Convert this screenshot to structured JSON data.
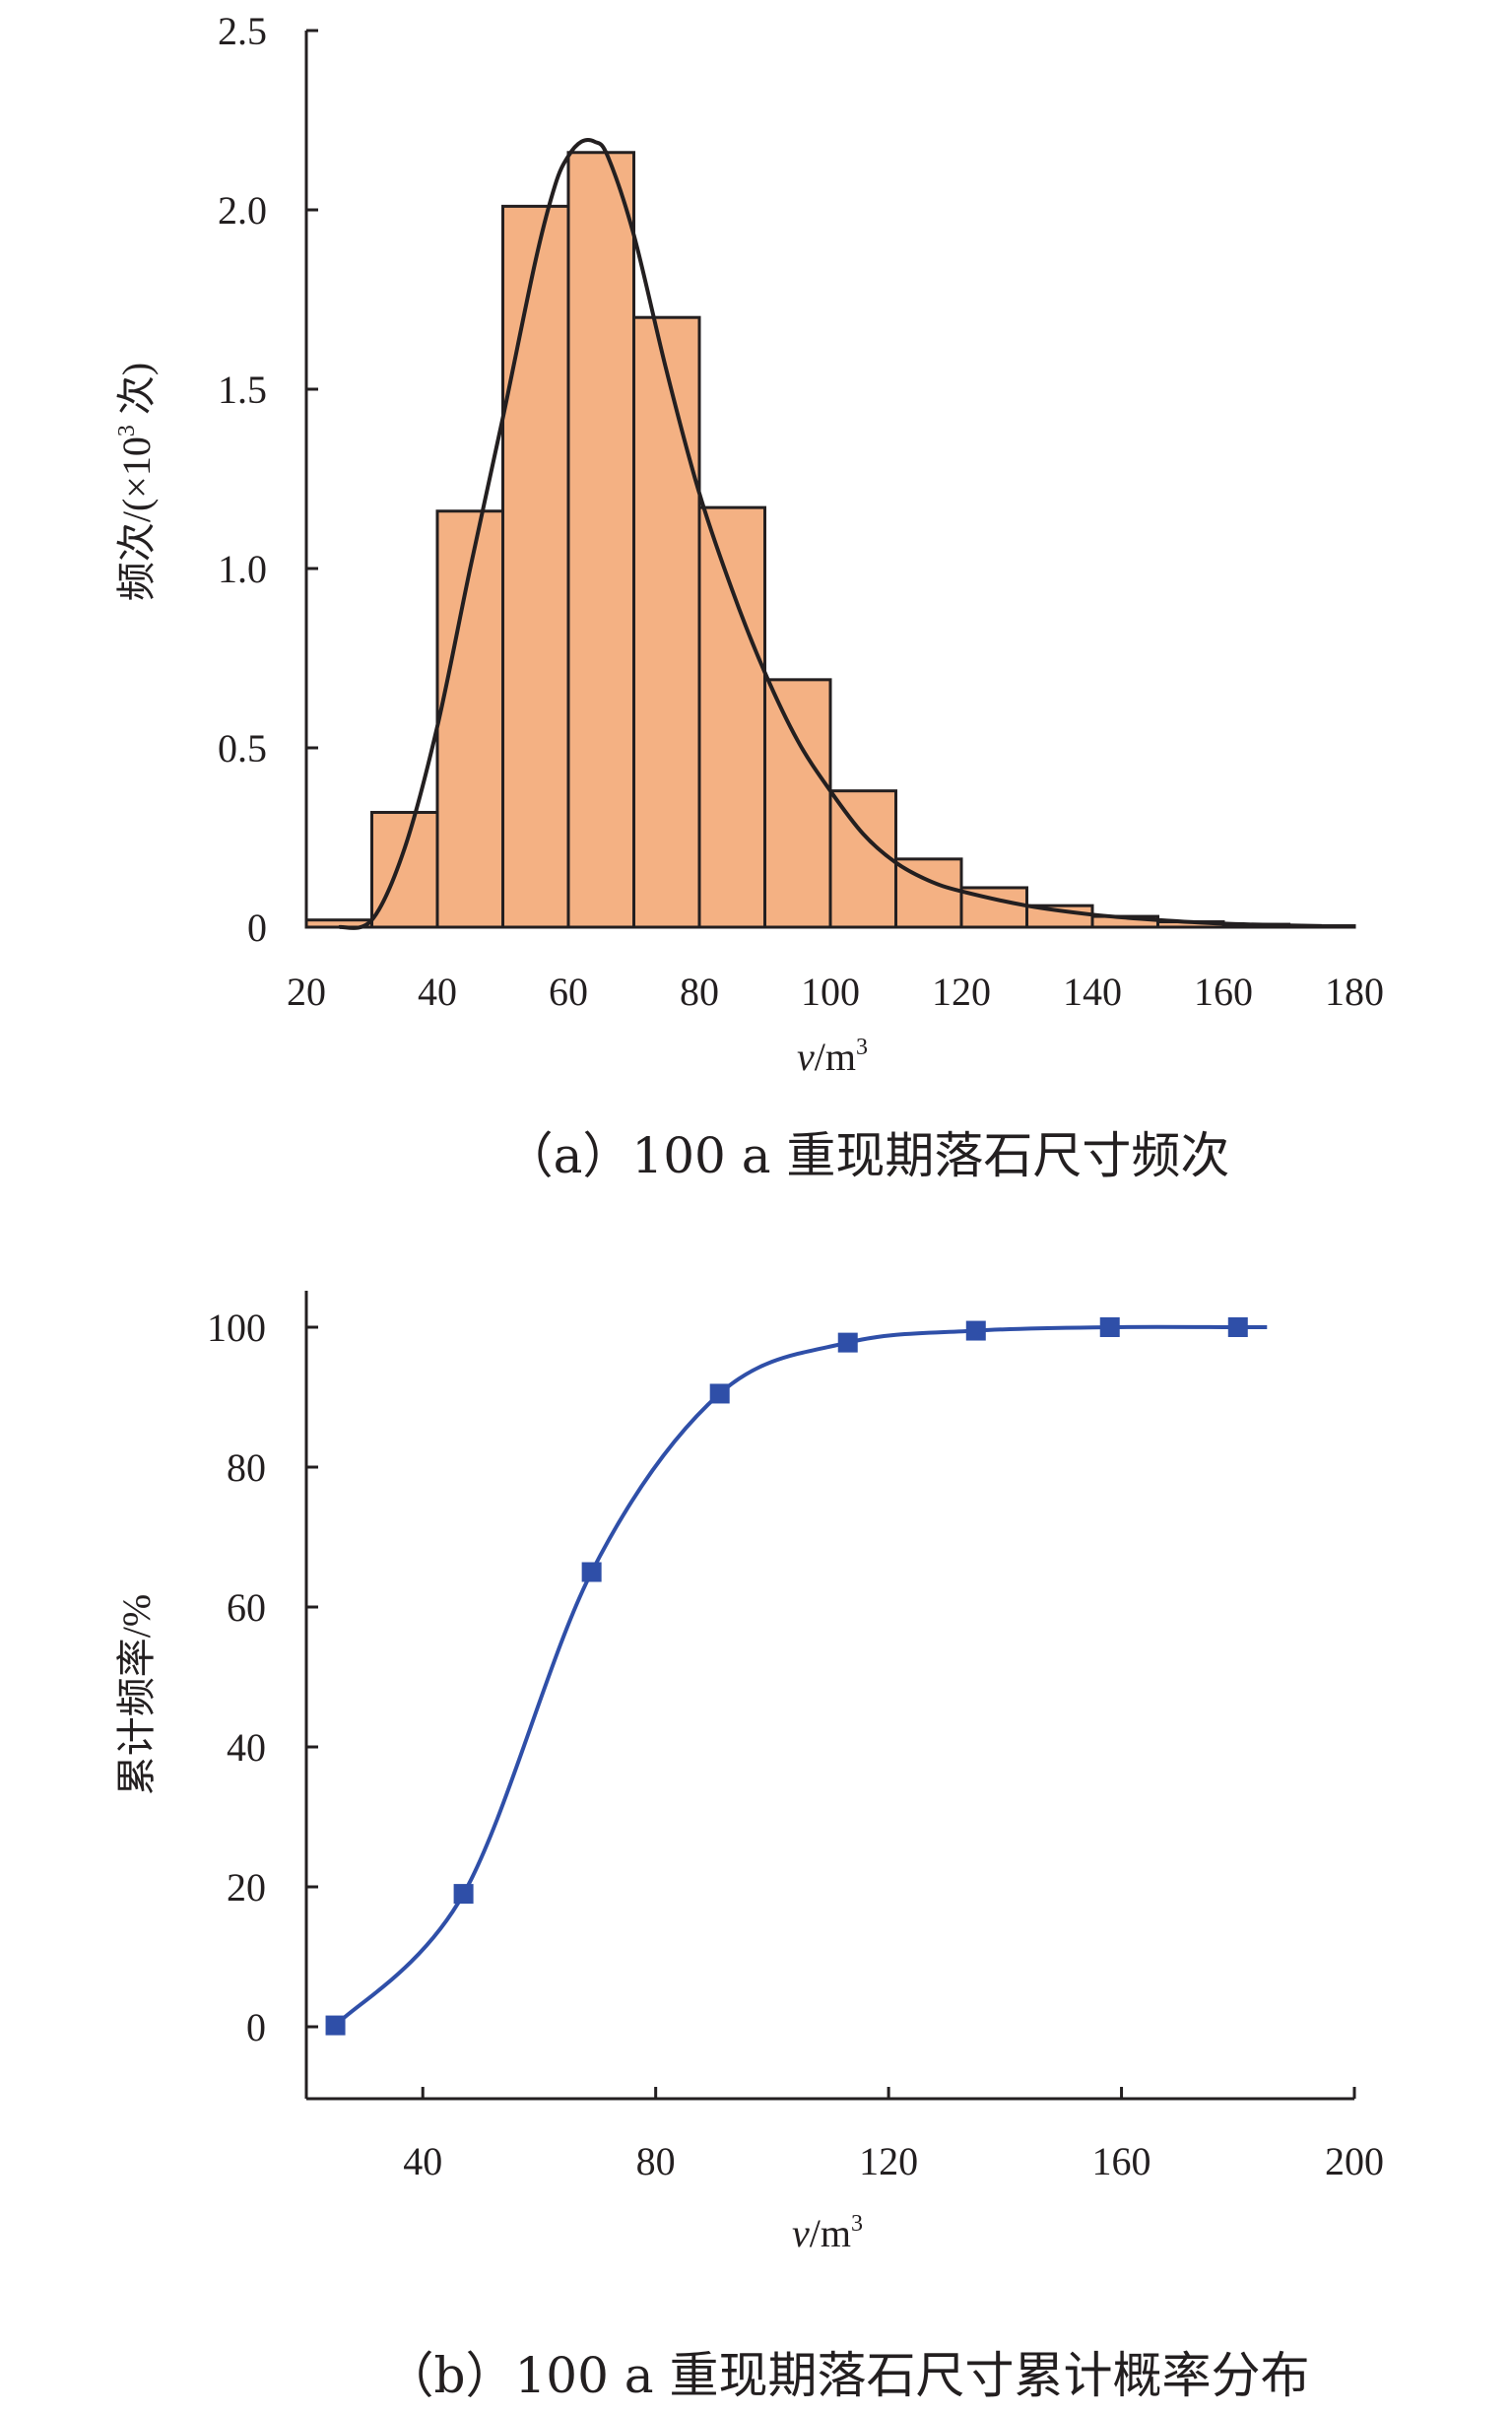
{
  "chart_data": [
    {
      "type": "bar",
      "caption": "（a）100 a 重现期落石尺寸频次",
      "xlabel_italic": "v",
      "xlabel_unit": "/m",
      "xlabel_sup": "3",
      "ylabel_prefix": "频次/(×10",
      "ylabel_sup": "3",
      "ylabel_suffix": " 次)",
      "xlim": [
        20,
        180
      ],
      "ylim": [
        0,
        2.5
      ],
      "xticks": [
        20,
        40,
        60,
        80,
        100,
        120,
        140,
        160,
        180
      ],
      "yticks": [
        0,
        0.5,
        1.0,
        1.5,
        2.0,
        2.5
      ],
      "ytick_labels": [
        "0",
        "0.5",
        "1.0",
        "1.5",
        "2.0",
        "2.5"
      ],
      "bin_width": 10,
      "bins": [
        20,
        30,
        40,
        50,
        60,
        70,
        80,
        90,
        100,
        110,
        120,
        130,
        140,
        150,
        160,
        170
      ],
      "values": [
        0.02,
        0.32,
        1.16,
        2.01,
        2.16,
        1.7,
        1.17,
        0.69,
        0.38,
        0.19,
        0.11,
        0.06,
        0.03,
        0.015,
        0.008,
        0.004
      ],
      "fit_curve": {
        "x": [
          25,
          30,
          35,
          40,
          45,
          50,
          55,
          58,
          60,
          62,
          64,
          66,
          70,
          75,
          80,
          85,
          90,
          95,
          100,
          105,
          110,
          115,
          120,
          130,
          140,
          150,
          160,
          170,
          175
        ],
        "y": [
          0.0,
          0.02,
          0.22,
          0.56,
          1.0,
          1.42,
          1.86,
          2.07,
          2.15,
          2.19,
          2.19,
          2.15,
          1.93,
          1.55,
          1.21,
          0.94,
          0.71,
          0.52,
          0.38,
          0.26,
          0.18,
          0.13,
          0.1,
          0.06,
          0.035,
          0.02,
          0.01,
          0.005,
          0.003
        ]
      }
    },
    {
      "type": "line",
      "caption": "（b）100 a 重现期落石尺寸累计概率分布",
      "xlabel_italic": "v",
      "xlabel_unit": "/m",
      "xlabel_sup": "3",
      "ylabel": "累计频率/%",
      "xlim": [
        20,
        200
      ],
      "ylim": [
        -10,
        100
      ],
      "xticks": [
        40,
        80,
        120,
        160,
        200
      ],
      "yticks": [
        0,
        20,
        40,
        60,
        80,
        100
      ],
      "points": {
        "x": [
          25,
          47,
          69,
          91,
          113,
          135,
          158,
          180
        ],
        "y": [
          0.2,
          19,
          65,
          90.5,
          97.8,
          99.5,
          100,
          100
        ]
      },
      "curve_end_x": 185
    }
  ]
}
